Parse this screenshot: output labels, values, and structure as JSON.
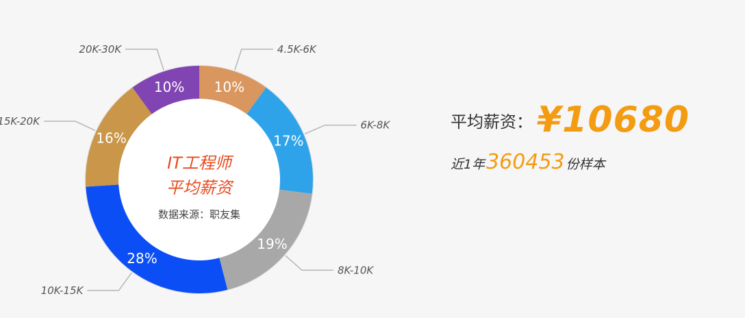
{
  "chart_data": {
    "type": "pie",
    "categories": [
      "4.5K-6K",
      "6K-8K",
      "8K-10K",
      "10K-15K",
      "15K-20K",
      "20K-30K"
    ],
    "values": [
      10,
      17,
      19,
      28,
      16,
      10
    ],
    "value_labels": [
      "10%",
      "17%",
      "19%",
      "28%",
      "16%",
      "10%"
    ],
    "colors": [
      "#d9965f",
      "#2fa3ea",
      "#a8a8a8",
      "#0c4ef5",
      "#c9964a",
      "#8145b3"
    ],
    "title": "IT工程师平均薪资",
    "title_lines": [
      "IT工程师",
      "平均薪资"
    ],
    "source": "数据来源：职友集",
    "legend": "none"
  },
  "summary": {
    "salary_label": "平均薪资：",
    "salary_value": "¥10680",
    "sample_prefix": "近1年",
    "sample_count": "360453",
    "sample_suffix": "份样本"
  }
}
